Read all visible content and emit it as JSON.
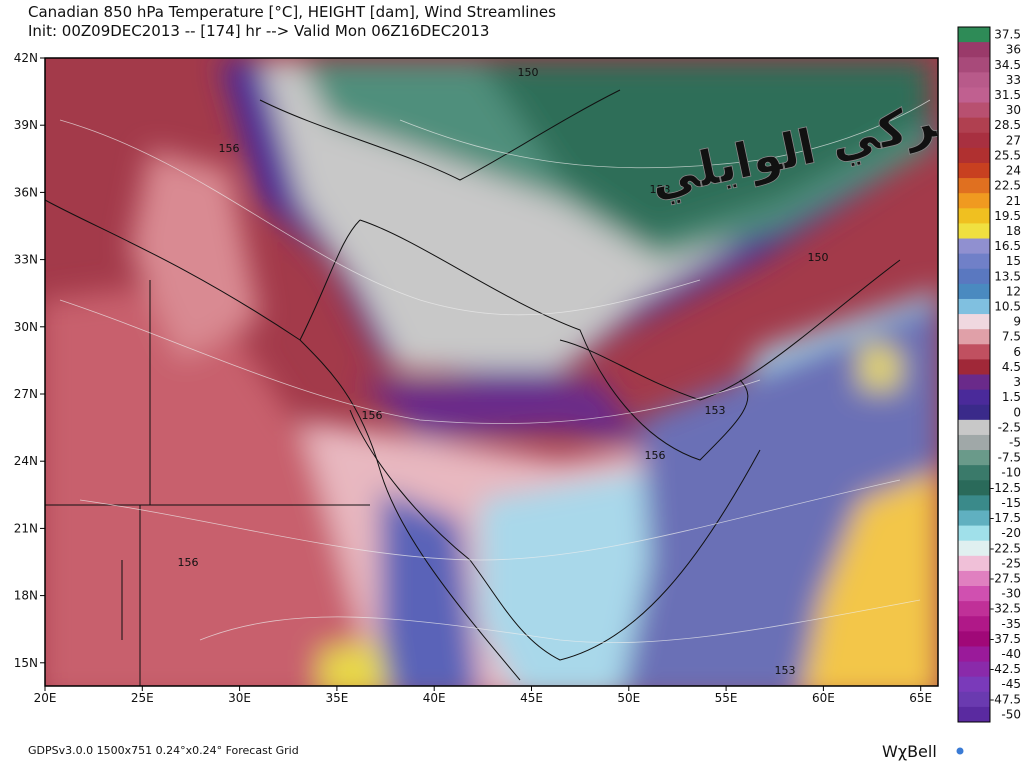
{
  "header": {
    "title": "Canadian 850 hPa Temperature [°C], HEIGHT [dam], Wind Streamlines",
    "subtitle": "Init: 00Z09DEC2013 -- [174] hr --> Valid Mon 06Z16DEC2013"
  },
  "map": {
    "lat_labels": [
      "42N",
      "39N",
      "36N",
      "33N",
      "30N",
      "27N",
      "24N",
      "21N",
      "18N",
      "15N"
    ],
    "lon_labels": [
      "20E",
      "25E",
      "30E",
      "35E",
      "40E",
      "45E",
      "50E",
      "55E",
      "60E",
      "65E"
    ],
    "contour_labels": [
      "150",
      "156",
      "153",
      "150",
      "156",
      "153",
      "156",
      "156",
      "153"
    ]
  },
  "colorbar": {
    "labels": [
      "37.5",
      "36",
      "34.5",
      "33",
      "31.5",
      "30",
      "28.5",
      "27",
      "25.5",
      "24",
      "22.5",
      "21",
      "19.5",
      "18",
      "16.5",
      "15",
      "13.5",
      "12",
      "10.5",
      "9",
      "7.5",
      "6",
      "4.5",
      "3",
      "1.5",
      "0",
      "-2.5",
      "-5",
      "-7.5",
      "-10",
      "-12.5",
      "-15",
      "-17.5",
      "-20",
      "-22.5",
      "-25",
      "-27.5",
      "-30",
      "-32.5",
      "-35",
      "-37.5",
      "-40",
      "-42.5",
      "-45",
      "-47.5",
      "-50"
    ]
  },
  "watermark": "تركي الوايلي",
  "footer": {
    "info": "GDPSv3.0.0 1500x751 0.24°x0.24° Forecast Grid",
    "brand": "WχBell"
  }
}
